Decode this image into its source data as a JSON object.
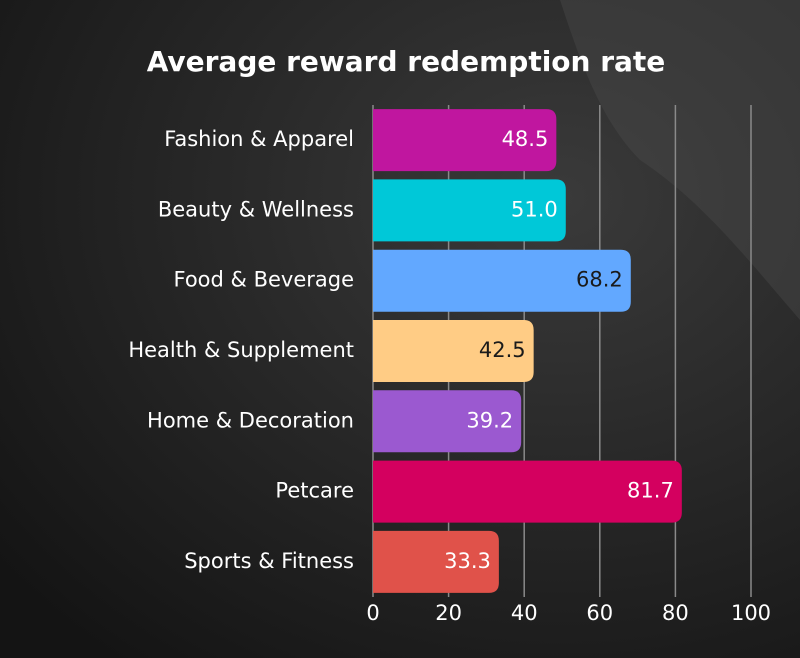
{
  "chart_data": {
    "type": "bar",
    "orientation": "horizontal",
    "title": "Average reward redemption rate",
    "categories": [
      "Fashion & Apparel",
      "Beauty & Wellness",
      "Food & Beverage",
      "Health & Supplement",
      "Home & Decoration",
      "Petcare",
      "Sports & Fitness"
    ],
    "values": [
      48.5,
      51,
      68.2,
      42.5,
      39.2,
      81.7,
      33.3
    ],
    "value_labels": [
      "48.5",
      "51.0",
      "68.2",
      "42.5",
      "39.2",
      "81.7",
      "33.3"
    ],
    "colors": [
      "#c0169f",
      "#00c8d8",
      "#62a8ff",
      "#ffcc85",
      "#9b59d0",
      "#d4005f",
      "#e0524a"
    ],
    "xlim": [
      0,
      100
    ],
    "xticks": [
      0,
      20,
      40,
      60,
      80,
      100
    ],
    "grid": true
  }
}
